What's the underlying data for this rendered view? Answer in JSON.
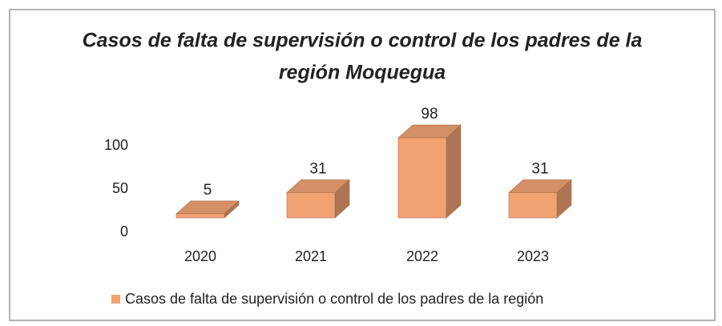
{
  "chart_data": {
    "type": "bar3d",
    "title": [
      "Casos de falta de supervisión o control de los padres de la",
      "región Moquegua"
    ],
    "categories": [
      "2020",
      "2021",
      "2022",
      "2023"
    ],
    "series": [
      {
        "name": "Casos de falta de supervisión o control de los padres de la región",
        "color": "#f0a273",
        "values": [
          5,
          31,
          98,
          31
        ]
      }
    ],
    "ylim": [
      0,
      100
    ],
    "yticks": [
      0,
      50,
      100
    ],
    "legend": "bottom"
  }
}
